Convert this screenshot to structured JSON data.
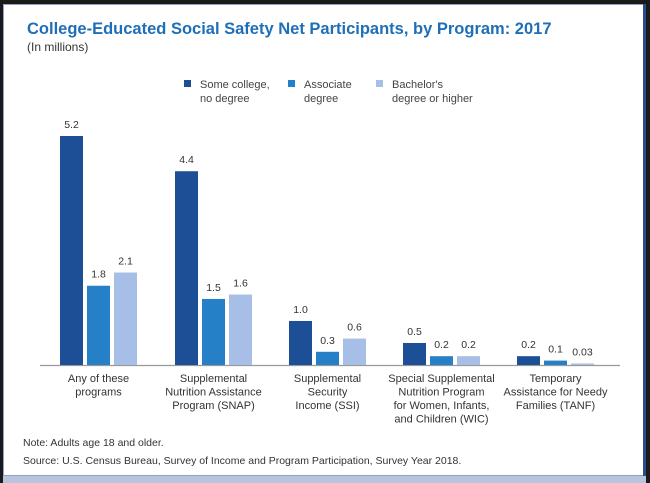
{
  "chart_data": {
    "type": "bar",
    "title": "College-Educated Social Safety Net Participants, by Program: 2017",
    "subtitle": "(In millions)",
    "xlabel": "",
    "ylabel": "",
    "ylim": [
      0,
      5.2
    ],
    "grid": false,
    "legend_position": "top-center",
    "categories": [
      "Any of these\nprograms",
      "Supplemental\nNutrition Assistance\nProgram (SNAP)",
      "Supplemental\nSecurity\nIncome (SSI)",
      "Special Supplemental\nNutrition Program\nfor Women, Infants,\nand Children (WIC)",
      "Temporary\nAssistance for Needy\nFamilies (TANF)"
    ],
    "series": [
      {
        "name": "Some college,\nno degree",
        "color": "#1c4f95",
        "values": [
          5.2,
          4.4,
          1.0,
          0.5,
          0.2
        ],
        "labels": [
          "5.2",
          "4.4",
          "1.0",
          "0.5",
          "0.2"
        ]
      },
      {
        "name": "Associate\ndegree",
        "color": "#2680c8",
        "values": [
          1.8,
          1.5,
          0.3,
          0.2,
          0.1
        ],
        "labels": [
          "1.8",
          "1.5",
          "0.3",
          "0.2",
          "0.1"
        ]
      },
      {
        "name": "Bachelor's\ndegree or higher",
        "color": "#a7bee6",
        "values": [
          2.1,
          1.6,
          0.6,
          0.2,
          0.03
        ],
        "labels": [
          "2.1",
          "1.6",
          "0.6",
          "0.2",
          "0.03"
        ]
      }
    ]
  },
  "notes": {
    "note": "Note: Adults age 18 and older.",
    "source": "Source: U.S. Census Bureau, Survey of Income and Program Participation, Survey Year 2018."
  }
}
